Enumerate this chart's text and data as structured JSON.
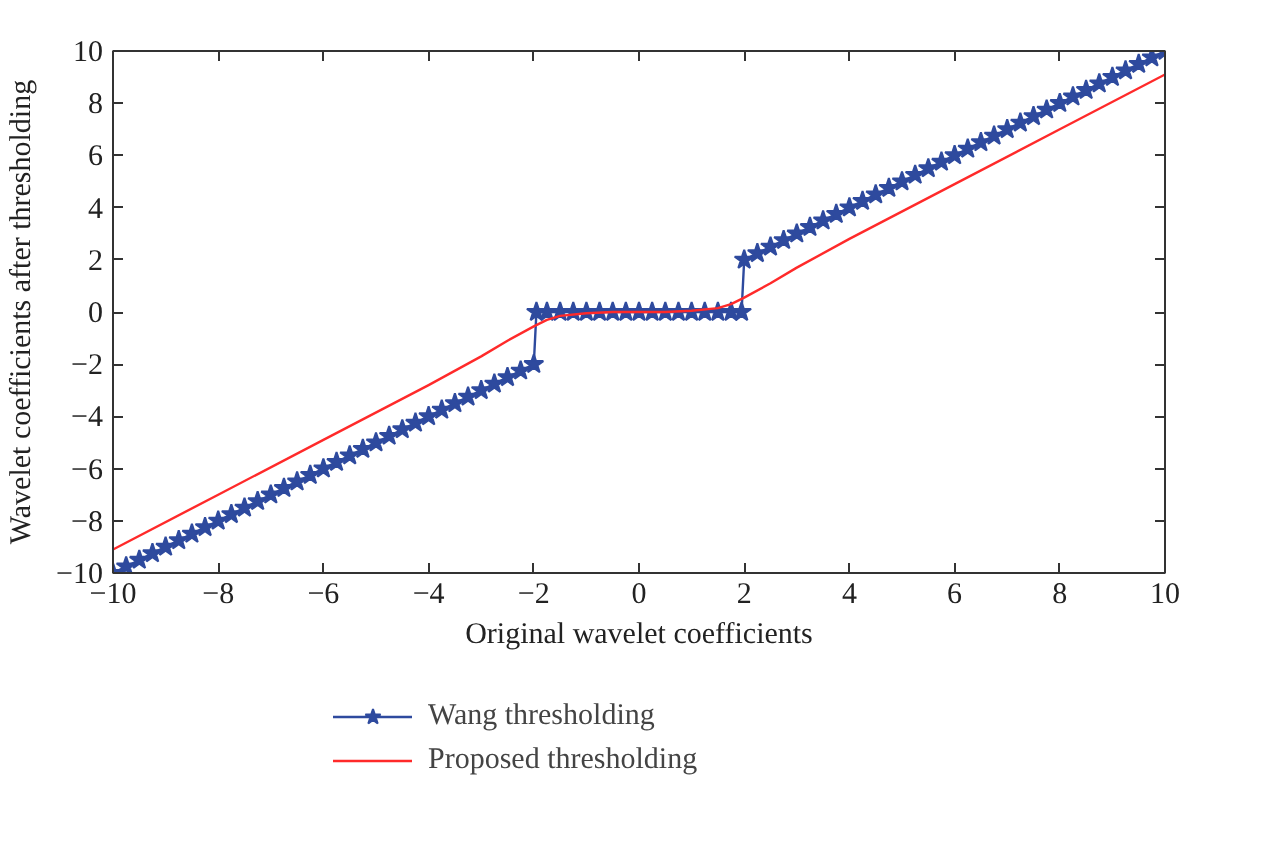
{
  "chart_data": {
    "type": "line",
    "xlabel": "Original wavelet coefficients",
    "ylabel": "Wavelet coefficients after thresholding",
    "xlim": [
      -10,
      10
    ],
    "ylim": [
      -10,
      10
    ],
    "xticks": [
      -10,
      -8,
      -6,
      -4,
      -2,
      0,
      2,
      4,
      6,
      8,
      10
    ],
    "yticks": [
      -10,
      -8,
      -6,
      -4,
      -2,
      0,
      2,
      4,
      6,
      8,
      10
    ],
    "grid": false,
    "legend": "bottom",
    "series": [
      {
        "name": "Wang thresholding",
        "color": "#2e4a9e",
        "marker": "star",
        "x": [
          -10,
          -9.75,
          -9.5,
          -9.25,
          -9,
          -8.75,
          -8.5,
          -8.25,
          -8,
          -7.75,
          -7.5,
          -7.25,
          -7,
          -6.75,
          -6.5,
          -6.25,
          -6,
          -5.75,
          -5.5,
          -5.25,
          -5,
          -4.75,
          -4.5,
          -4.25,
          -4,
          -3.75,
          -3.5,
          -3.25,
          -3,
          -2.75,
          -2.5,
          -2.25,
          -2,
          -1.95,
          -1.75,
          -1.5,
          -1.25,
          -1,
          -0.75,
          -0.5,
          -0.25,
          0,
          0.25,
          0.5,
          0.75,
          1,
          1.25,
          1.5,
          1.75,
          1.95,
          2,
          2.25,
          2.5,
          2.75,
          3,
          3.25,
          3.5,
          3.75,
          4,
          4.25,
          4.5,
          4.75,
          5,
          5.25,
          5.5,
          5.75,
          6,
          6.25,
          6.5,
          6.75,
          7,
          7.25,
          7.5,
          7.75,
          8,
          8.25,
          8.5,
          8.75,
          9,
          9.25,
          9.5,
          9.75,
          10
        ],
        "values": [
          -10,
          -9.75,
          -9.5,
          -9.25,
          -9,
          -8.75,
          -8.5,
          -8.25,
          -8,
          -7.75,
          -7.5,
          -7.25,
          -7,
          -6.75,
          -6.5,
          -6.25,
          -6,
          -5.75,
          -5.5,
          -5.25,
          -5,
          -4.75,
          -4.5,
          -4.25,
          -4,
          -3.75,
          -3.5,
          -3.25,
          -3,
          -2.75,
          -2.5,
          -2.25,
          -2,
          0,
          0,
          0,
          0,
          0,
          0,
          0,
          0,
          0,
          0,
          0,
          0,
          0,
          0,
          0,
          0,
          0,
          2,
          2.25,
          2.5,
          2.75,
          3,
          3.25,
          3.5,
          3.75,
          4,
          4.25,
          4.5,
          4.75,
          5,
          5.25,
          5.5,
          5.75,
          6,
          6.25,
          6.5,
          6.75,
          7,
          7.25,
          7.5,
          7.75,
          8,
          8.25,
          8.5,
          8.75,
          9,
          9.25,
          9.5,
          9.75,
          10
        ]
      },
      {
        "name": "Proposed thresholding",
        "color": "#ff2a2a",
        "marker": "none",
        "x": [
          -10,
          -8,
          -6,
          -4,
          -3,
          -2.5,
          -2,
          -1.75,
          -1.5,
          -1,
          -0.5,
          0,
          0.5,
          1,
          1.5,
          1.75,
          2,
          2.5,
          3,
          4,
          6,
          8,
          10
        ],
        "values": [
          -9.1,
          -7.0,
          -4.9,
          -2.8,
          -1.7,
          -1.1,
          -0.55,
          -0.3,
          -0.15,
          -0.05,
          0,
          0,
          0,
          0.05,
          0.15,
          0.3,
          0.55,
          1.1,
          1.7,
          2.8,
          4.9,
          7.0,
          9.1
        ]
      }
    ]
  }
}
